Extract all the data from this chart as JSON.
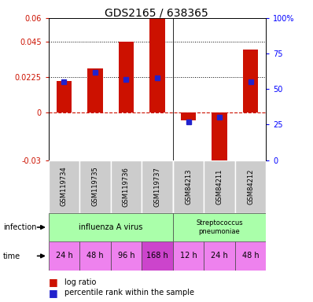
{
  "title": "GDS2165 / 638365",
  "samples": [
    "GSM119734",
    "GSM119735",
    "GSM119736",
    "GSM119737",
    "GSM84213",
    "GSM84211",
    "GSM84212"
  ],
  "log_ratio": [
    0.02,
    0.028,
    0.045,
    0.06,
    -0.005,
    -0.03,
    0.04
  ],
  "percentile_rank_pct": [
    55,
    62,
    57,
    58,
    27,
    30,
    55
  ],
  "ylim_left": [
    -0.03,
    0.06
  ],
  "ylim_right": [
    0,
    100
  ],
  "yticks_left": [
    -0.03,
    0,
    0.0225,
    0.045,
    0.06
  ],
  "yticks_right": [
    0,
    25,
    50,
    75,
    100
  ],
  "hlines": [
    0.0225,
    0.045
  ],
  "bar_color": "#cc1100",
  "dot_color": "#2222cc",
  "zero_line_color": "#cc1100",
  "background_color": "#ffffff",
  "title_fontsize": 10,
  "tick_fontsize": 7,
  "sample_fontsize": 6,
  "annotation_fontsize": 8
}
